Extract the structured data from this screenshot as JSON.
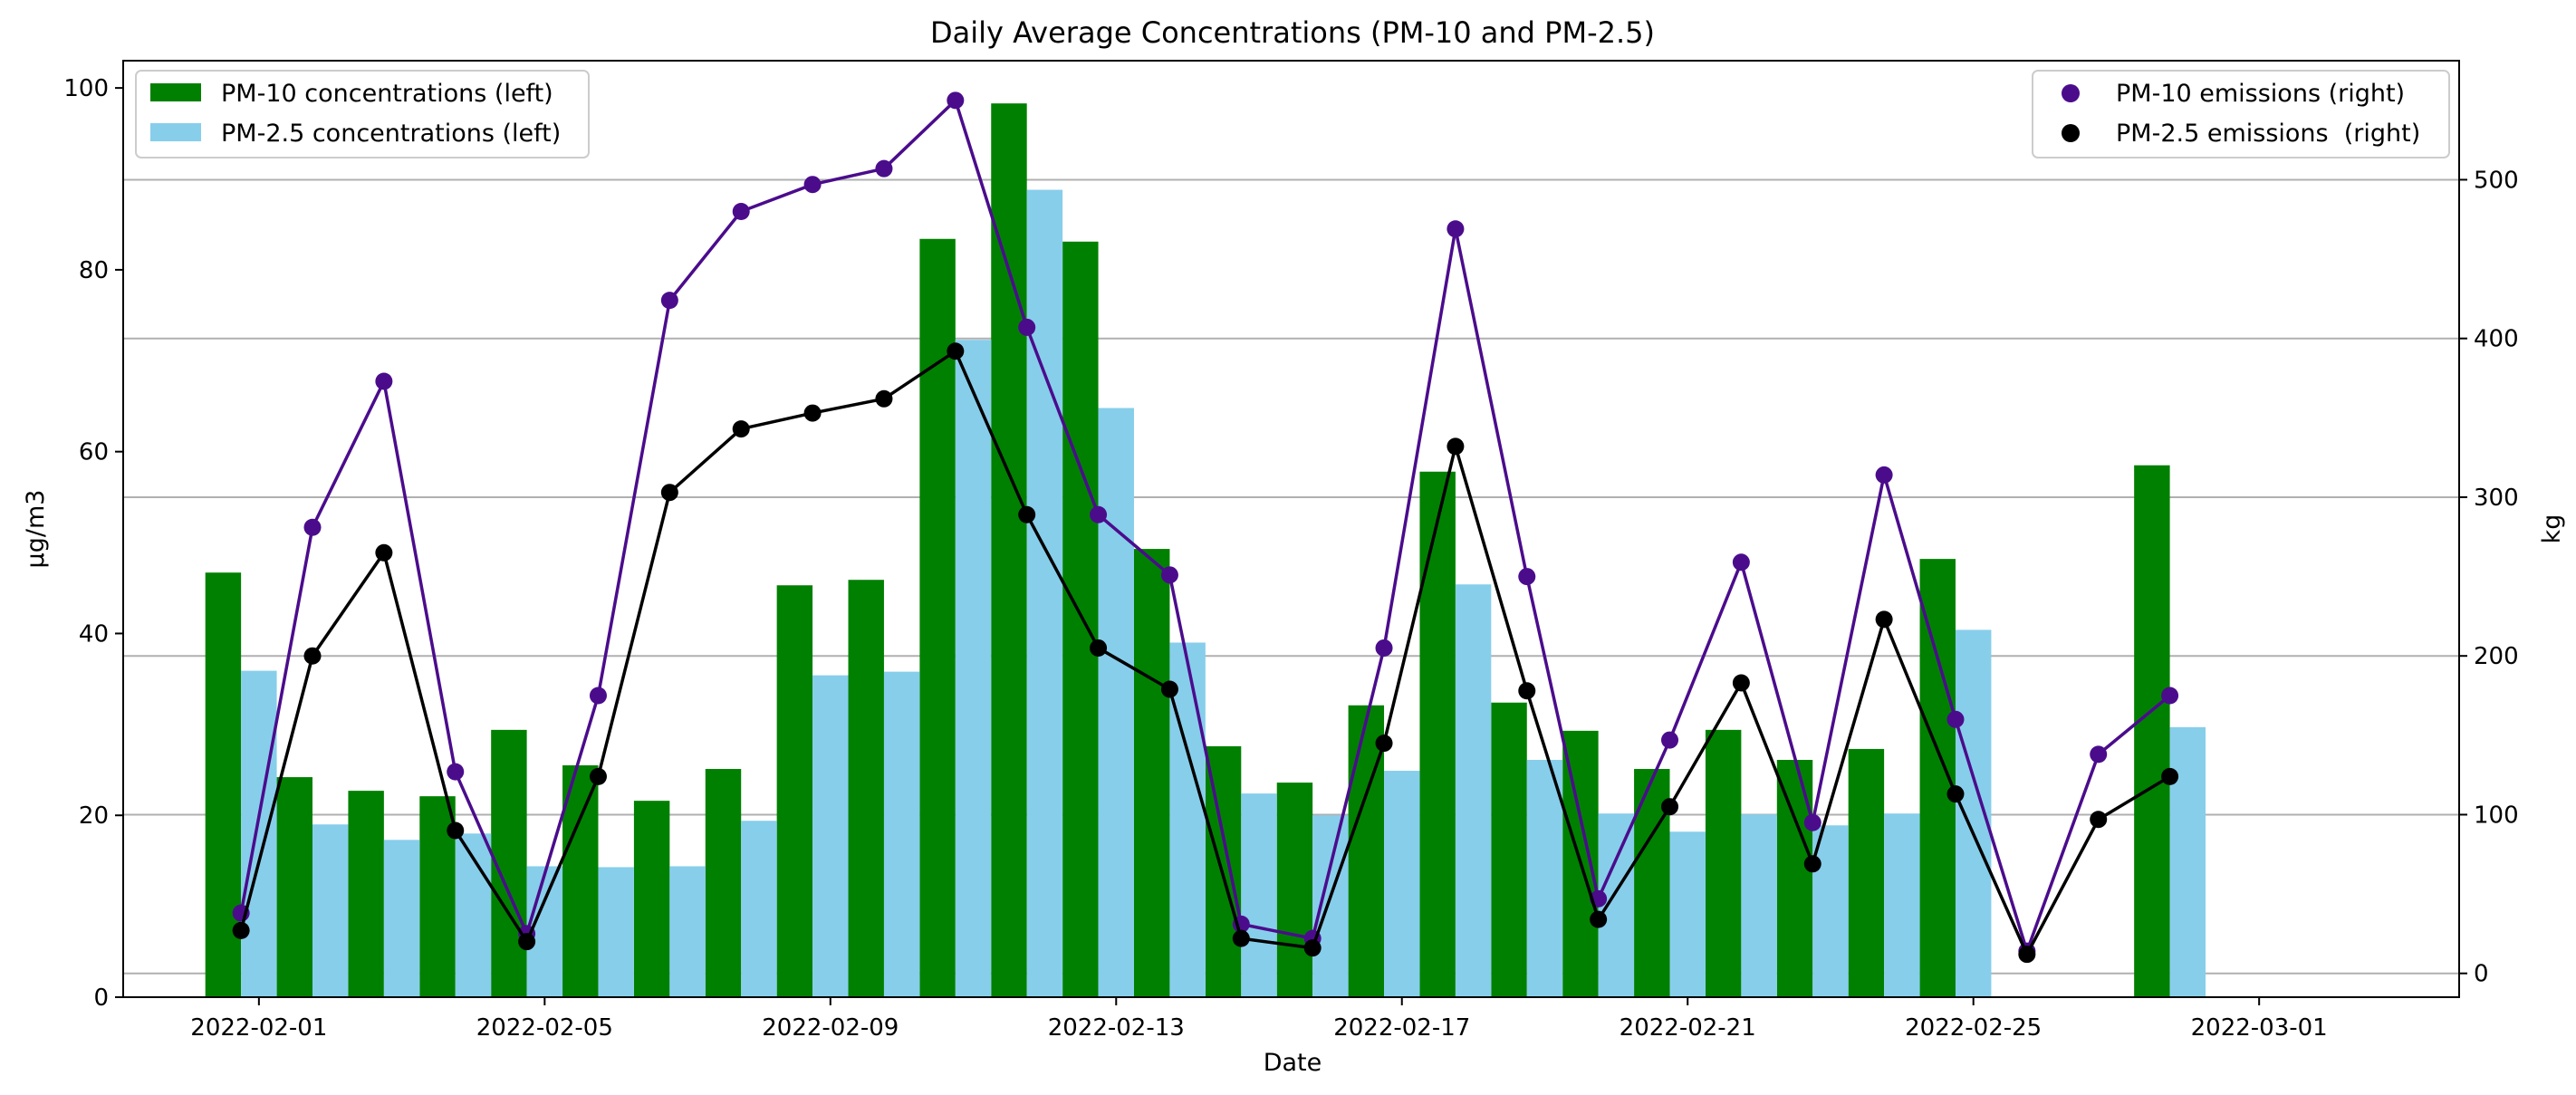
{
  "chart_data": {
    "type": "bar+line",
    "title": "Daily Average Concentrations (PM-10 and PM-2.5)",
    "xlabel": "Date",
    "ylabel_left": "µg/m3",
    "ylabel_right": "kg",
    "ylim_left": [
      0,
      103
    ],
    "ylim_right": [
      -15,
      575
    ],
    "yticks_left": [
      0,
      20,
      40,
      60,
      80,
      100
    ],
    "yticks_right": [
      0,
      100,
      200,
      300,
      400,
      500
    ],
    "xlim": [
      -1.9,
      30.8
    ],
    "x_ticks": [
      {
        "label": "2022-02-01",
        "day": 0
      },
      {
        "label": "2022-02-05",
        "day": 4
      },
      {
        "label": "2022-02-09",
        "day": 8
      },
      {
        "label": "2022-02-13",
        "day": 12
      },
      {
        "label": "2022-02-17",
        "day": 16
      },
      {
        "label": "2022-02-21",
        "day": 20
      },
      {
        "label": "2022-02-25",
        "day": 24
      },
      {
        "label": "2022-03-01",
        "day": 28
      }
    ],
    "grid": "horizontal (right axis)",
    "days": [
      -0.25,
      0.75,
      1.75,
      2.75,
      3.75,
      4.75,
      5.75,
      6.75,
      7.75,
      8.75,
      9.75,
      10.75,
      11.75,
      12.75,
      13.75,
      14.75,
      15.75,
      16.75,
      17.75,
      18.75,
      19.75,
      20.75,
      21.75,
      22.75,
      23.75,
      24.75,
      25.75,
      26.75,
      27.75
    ],
    "series": [
      {
        "name": "PM-10 concentrations (left)",
        "kind": "bar",
        "axis": "left",
        "color": "#008000",
        "offset": -0.25,
        "values": [
          46.7,
          24.2,
          22.7,
          22.1,
          29.4,
          25.5,
          21.6,
          25.1,
          45.3,
          45.9,
          83.4,
          98.3,
          83.1,
          49.3,
          27.6,
          23.6,
          32.1,
          57.8,
          32.4,
          29.3,
          25.1,
          29.4,
          26.1,
          27.3,
          48.2,
          null,
          null,
          58.5,
          null
        ]
      },
      {
        "name": "PM-2.5 concentrations (left)",
        "kind": "bar",
        "axis": "left",
        "color": "#87ceeb",
        "offset": 0.25,
        "values": [
          35.9,
          19.0,
          17.3,
          18.0,
          14.4,
          14.3,
          14.4,
          19.4,
          35.4,
          35.8,
          72.3,
          88.8,
          64.8,
          39.0,
          22.4,
          20.0,
          24.9,
          45.4,
          26.1,
          20.2,
          18.2,
          20.1,
          18.9,
          20.2,
          40.4,
          null,
          null,
          29.7,
          null
        ]
      },
      {
        "name": "PM-10 emissions (right)",
        "kind": "line",
        "axis": "right",
        "color": "#4b0c8c",
        "values": [
          38,
          281,
          373,
          127,
          25,
          175,
          424,
          480,
          497,
          507,
          550,
          407,
          289,
          251,
          31,
          22,
          205,
          469,
          250,
          47,
          147,
          259,
          95,
          314,
          160,
          14,
          138,
          175,
          null
        ]
      },
      {
        "name": "PM-2.5 emissions  (right)",
        "kind": "line",
        "axis": "right",
        "color": "#000000",
        "values": [
          27,
          200,
          265,
          90,
          20,
          124,
          303,
          343,
          353,
          362,
          392,
          289,
          205,
          179,
          22,
          16,
          145,
          332,
          178,
          34,
          105,
          183,
          69,
          223,
          113,
          12,
          97,
          124,
          null
        ]
      }
    ],
    "legend_left_position": "upper-left",
    "legend_right_position": "upper-right"
  }
}
